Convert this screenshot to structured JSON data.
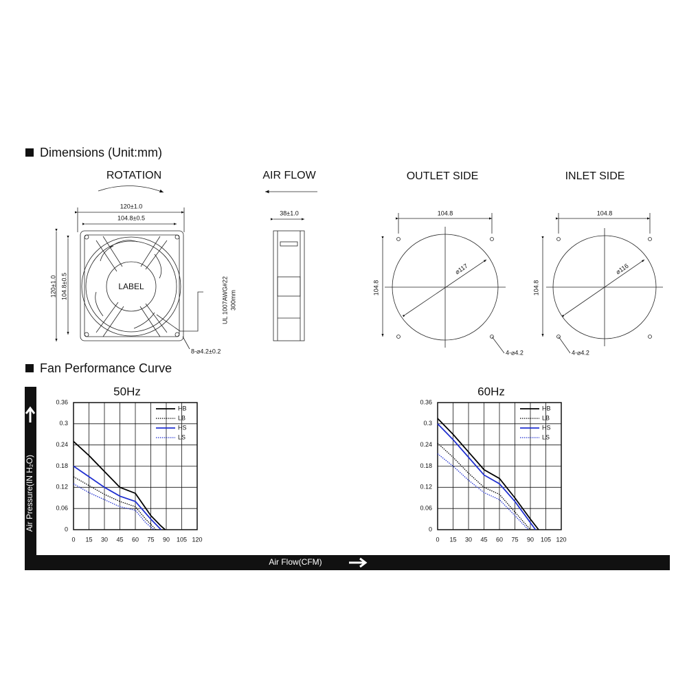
{
  "header": {
    "dimensions_title": "Dimensions (Unit:mm)",
    "performance_title": "Fan Performance Curve"
  },
  "drawing": {
    "rotation": "ROTATION",
    "air_flow": "AIR FLOW",
    "outlet_side": "OUTLET SIDE",
    "inlet_side": "INLET SIDE",
    "front": {
      "outer_width": "120±1.0",
      "inner_width": "104.8±0.5",
      "outer_height": "120±1.0",
      "inner_height": "104.8±0.5",
      "label": "LABEL",
      "holes": "8-⌀4.2±0.2",
      "cable": "UL 1007AWG#22",
      "cable_length": "300mm"
    },
    "side": {
      "depth": "38±1.0"
    },
    "outlet": {
      "width": "104.8",
      "height": "104.8",
      "diameter": "⌀117",
      "holes": "4-⌀4.2"
    },
    "inlet": {
      "width": "104.8",
      "height": "104.8",
      "diameter": "⌀116",
      "holes": "4-⌀4.2"
    }
  },
  "axes": {
    "y_label": "Air Pressure(IN H₂O)",
    "x_label": "Air Flow(CFM)"
  },
  "chart_data": [
    {
      "type": "line",
      "title": "50Hz",
      "xlim": [
        0,
        120
      ],
      "ylim": [
        0,
        0.36
      ],
      "xticks": [
        0,
        15,
        30,
        45,
        60,
        75,
        90,
        105,
        120
      ],
      "yticks": [
        0,
        0.06,
        0.12,
        0.18,
        0.24,
        0.3,
        0.36
      ],
      "grid": true,
      "legend": "top-right",
      "series": [
        {
          "name": "HB",
          "color": "#000000",
          "style": "solid",
          "x": [
            0,
            15,
            30,
            45,
            60,
            75,
            85,
            89
          ],
          "values": [
            0.25,
            0.21,
            0.165,
            0.12,
            0.103,
            0.04,
            0.01,
            0
          ]
        },
        {
          "name": "LB",
          "color": "#000000",
          "style": "dotted",
          "x": [
            0,
            15,
            30,
            45,
            60,
            70,
            80
          ],
          "values": [
            0.15,
            0.125,
            0.1,
            0.08,
            0.065,
            0.03,
            0
          ]
        },
        {
          "name": "HS",
          "color": "#1f2fd0",
          "style": "solid",
          "x": [
            0,
            15,
            30,
            45,
            60,
            75,
            85
          ],
          "values": [
            0.18,
            0.15,
            0.12,
            0.095,
            0.08,
            0.03,
            0
          ]
        },
        {
          "name": "LS",
          "color": "#1f2fd0",
          "style": "dotted",
          "x": [
            0,
            15,
            30,
            45,
            60,
            70,
            78
          ],
          "values": [
            0.13,
            0.105,
            0.085,
            0.065,
            0.055,
            0.02,
            0
          ]
        }
      ]
    },
    {
      "type": "line",
      "title": "60Hz",
      "xlim": [
        0,
        120
      ],
      "ylim": [
        0,
        0.36
      ],
      "xticks": [
        0,
        15,
        30,
        45,
        60,
        75,
        90,
        105,
        120
      ],
      "yticks": [
        0,
        0.06,
        0.12,
        0.18,
        0.24,
        0.3,
        0.36
      ],
      "grid": true,
      "legend": "top-right",
      "series": [
        {
          "name": "HB",
          "color": "#000000",
          "style": "solid",
          "x": [
            0,
            15,
            30,
            45,
            60,
            75,
            90,
            98
          ],
          "values": [
            0.315,
            0.27,
            0.22,
            0.17,
            0.145,
            0.09,
            0.03,
            0
          ]
        },
        {
          "name": "LB",
          "color": "#000000",
          "style": "dotted",
          "x": [
            0,
            15,
            30,
            45,
            60,
            75,
            90
          ],
          "values": [
            0.245,
            0.205,
            0.16,
            0.12,
            0.1,
            0.05,
            0
          ]
        },
        {
          "name": "HS",
          "color": "#1f2fd0",
          "style": "solid",
          "x": [
            0,
            15,
            30,
            45,
            60,
            75,
            90,
            95
          ],
          "values": [
            0.3,
            0.255,
            0.205,
            0.155,
            0.13,
            0.08,
            0.02,
            0
          ]
        },
        {
          "name": "LS",
          "color": "#1f2fd0",
          "style": "dotted",
          "x": [
            0,
            15,
            30,
            45,
            60,
            75,
            88
          ],
          "values": [
            0.215,
            0.18,
            0.14,
            0.105,
            0.085,
            0.04,
            0
          ]
        }
      ]
    }
  ]
}
